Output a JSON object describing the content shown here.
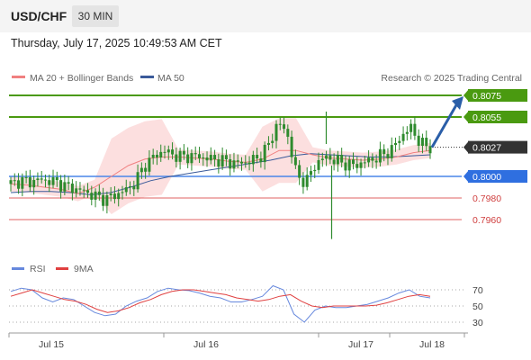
{
  "header": {
    "symbol": "USD/CHF",
    "timeframe": "30 MIN",
    "datetime": "Thursday, July 17, 2025 10:49:53 AM CET"
  },
  "legend": {
    "ma20": "MA 20 + Bollinger Bands",
    "ma50": "MA 50",
    "credit": "Research © 2025 Trading Central",
    "rsi": "RSI",
    "ma9": "9MA"
  },
  "colors": {
    "candle": "#2e8b2e",
    "resistance": "#4a9a10",
    "pivot": "#4a86e8",
    "support": "#e06060",
    "current_price": "#333333",
    "ma20": "#f08080",
    "ma50": "#3a5a9a",
    "bollinger_fill": "#fbd9d9",
    "rsi": "#6688dd",
    "rsi_ma": "#e04040",
    "arrow": "#2a5ea8"
  },
  "levels": [
    {
      "name": "resistance-2",
      "value": 0.8075,
      "label": "0.8075",
      "kind": "resistance"
    },
    {
      "name": "resistance-1",
      "value": 0.8055,
      "label": "0.8055",
      "kind": "resistance"
    },
    {
      "name": "current-price",
      "value": 0.8027,
      "label": "0.8027",
      "kind": "current"
    },
    {
      "name": "pivot",
      "value": 0.8,
      "label": "0.8000",
      "kind": "pivot"
    },
    {
      "name": "support-1",
      "value": 0.798,
      "label": "0.7980",
      "kind": "support"
    },
    {
      "name": "support-2",
      "value": 0.796,
      "label": "0.7960",
      "kind": "support"
    }
  ],
  "chart_data": {
    "type": "candlestick",
    "title": "USD/CHF",
    "timeframe": "30 MIN",
    "x_labels": [
      "Jul 15",
      "Jul 16",
      "Jul 17",
      "Jul 18"
    ],
    "price_range": [
      0.7938,
      0.8085
    ],
    "price_series_approx": [
      0.7993,
      0.7996,
      0.7995,
      0.7997,
      0.7996,
      0.7994,
      0.799,
      0.7988,
      0.7985,
      0.7981,
      0.7979,
      0.7983,
      0.7987,
      0.7994,
      0.801,
      0.8018,
      0.8024,
      0.802,
      0.8018,
      0.8019,
      0.8018,
      0.8016,
      0.8015,
      0.8013,
      0.8012,
      0.8014,
      0.8017,
      0.8028,
      0.805,
      0.804,
      0.8,
      0.7995,
      0.8012,
      0.8018,
      0.8015,
      0.8012,
      0.801,
      0.8013,
      0.8016,
      0.802,
      0.8025,
      0.8038,
      0.8045,
      0.803,
      0.8027
    ],
    "ma20_approx": [
      0.7993,
      0.7992,
      0.799,
      0.7988,
      0.7984,
      0.799,
      0.8,
      0.801,
      0.8016,
      0.8018,
      0.8018,
      0.8017,
      0.8016,
      0.8014,
      0.8013,
      0.8016,
      0.8024,
      0.8024,
      0.802,
      0.8017,
      0.8016,
      0.8015,
      0.8016,
      0.8018,
      0.8022,
      0.8024
    ],
    "ma50_approx": [
      0.7985,
      0.7986,
      0.7986,
      0.7985,
      0.7983,
      0.7985,
      0.799,
      0.7996,
      0.8,
      0.8003,
      0.8006,
      0.8009,
      0.8012,
      0.8015,
      0.8019,
      0.8021,
      0.802,
      0.8019,
      0.8018,
      0.8018,
      0.8019,
      0.802
    ],
    "forecast": {
      "from": 0.8027,
      "to": 0.8075
    },
    "rsi": {
      "levels": [
        70,
        50,
        30
      ],
      "series_approx": [
        68,
        72,
        70,
        60,
        55,
        60,
        58,
        50,
        42,
        38,
        40,
        50,
        56,
        60,
        68,
        72,
        70,
        69,
        66,
        62,
        60,
        55,
        55,
        58,
        62,
        75,
        70,
        40,
        30,
        45,
        50,
        48,
        48,
        50,
        52,
        56,
        60,
        66,
        70,
        62,
        60
      ],
      "ma9_approx": [
        62,
        66,
        70,
        66,
        62,
        58,
        56,
        52,
        46,
        42,
        44,
        48,
        54,
        58,
        64,
        68,
        70,
        70,
        68,
        66,
        64,
        60,
        58,
        56,
        58,
        62,
        64,
        56,
        50,
        48,
        50,
        50,
        50,
        50,
        51,
        54,
        58,
        62,
        64,
        62
      ]
    }
  }
}
